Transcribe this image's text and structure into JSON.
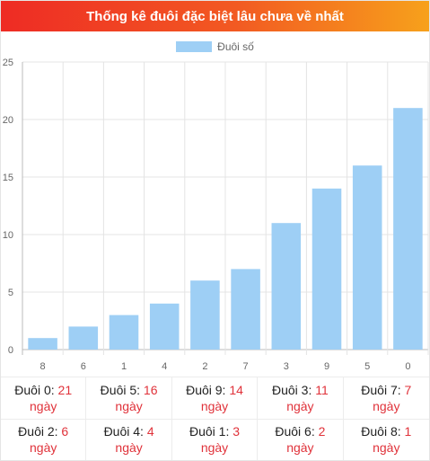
{
  "header": {
    "title": "Thống kê đuôi đặc biệt lâu chưa về nhất"
  },
  "chart_data": {
    "type": "bar",
    "title": "",
    "xlabel": "",
    "ylabel": "",
    "categories": [
      "8",
      "6",
      "1",
      "4",
      "2",
      "7",
      "3",
      "9",
      "5",
      "0"
    ],
    "series": [
      {
        "name": "Đuôi số",
        "values": [
          1,
          2,
          3,
          4,
          6,
          7,
          11,
          14,
          16,
          21
        ],
        "color": "#9ecff5"
      }
    ],
    "ylim": [
      0,
      25
    ],
    "yticks": [
      0,
      5,
      10,
      15,
      20,
      25
    ],
    "grid": true,
    "legend": "top-center"
  },
  "stats": [
    {
      "label": "Đuôi 0:",
      "value": "21",
      "unit": "ngày"
    },
    {
      "label": "Đuôi 5:",
      "value": "16",
      "unit": "ngày"
    },
    {
      "label": "Đuôi 9:",
      "value": "14",
      "unit": "ngày"
    },
    {
      "label": "Đuôi 3:",
      "value": "11",
      "unit": "ngày"
    },
    {
      "label": "Đuôi 7:",
      "value": "7",
      "unit": "ngày"
    },
    {
      "label": "Đuôi 2:",
      "value": "6",
      "unit": "ngày"
    },
    {
      "label": "Đuôi 4:",
      "value": "4",
      "unit": "ngày"
    },
    {
      "label": "Đuôi 1:",
      "value": "3",
      "unit": "ngày"
    },
    {
      "label": "Đuôi 6:",
      "value": "2",
      "unit": "ngày"
    },
    {
      "label": "Đuôi 8:",
      "value": "1",
      "unit": "ngày"
    }
  ]
}
